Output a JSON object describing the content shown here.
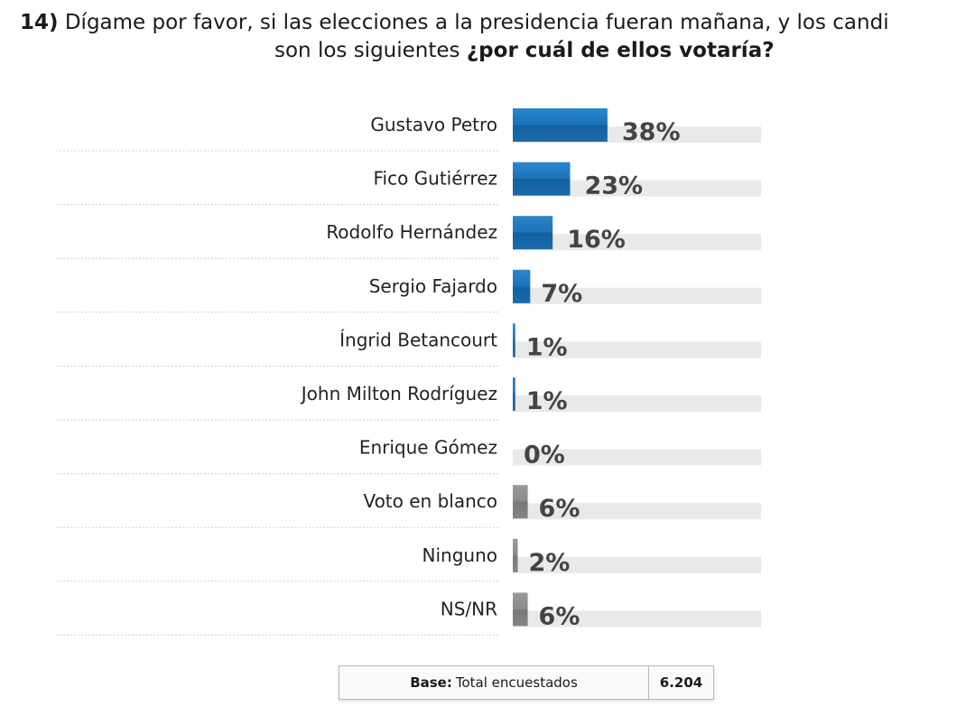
{
  "question": {
    "number": "14)",
    "text_line1": "Dígame por favor, si las elecciones a la presidencia fueran mañana, y los candi",
    "text_line2": "son los siguientes",
    "text_bold": "¿por cuál de ellos votaría?"
  },
  "chart_data": {
    "type": "bar",
    "orientation": "horizontal",
    "categories": [
      "Gustavo Petro",
      "Fico Gutiérrez",
      "Rodolfo Hernández",
      "Sergio Fajardo",
      "Íngrid Betancourt",
      "John Milton Rodríguez",
      "Enrique Gómez",
      "Voto en blanco",
      "Ninguno",
      "NS/NR"
    ],
    "values": [
      38,
      23,
      16,
      7,
      1,
      1,
      0,
      6,
      2,
      6
    ],
    "value_labels": [
      "38%",
      "23%",
      "16%",
      "7%",
      "1%",
      "1%",
      "0%",
      "6%",
      "2%",
      "6%"
    ],
    "bar_colors": [
      "#1b73b8",
      "#1b73b8",
      "#1b73b8",
      "#1b73b8",
      "#1b73b8",
      "#1b73b8",
      "#1b73b8",
      "#8a8a8a",
      "#8a8a8a",
      "#8a8a8a"
    ],
    "xlim": [
      0,
      100
    ],
    "grid": false,
    "legend": "none"
  },
  "base": {
    "label": "Base:",
    "text": "Total encuestados",
    "value": "6.204"
  }
}
